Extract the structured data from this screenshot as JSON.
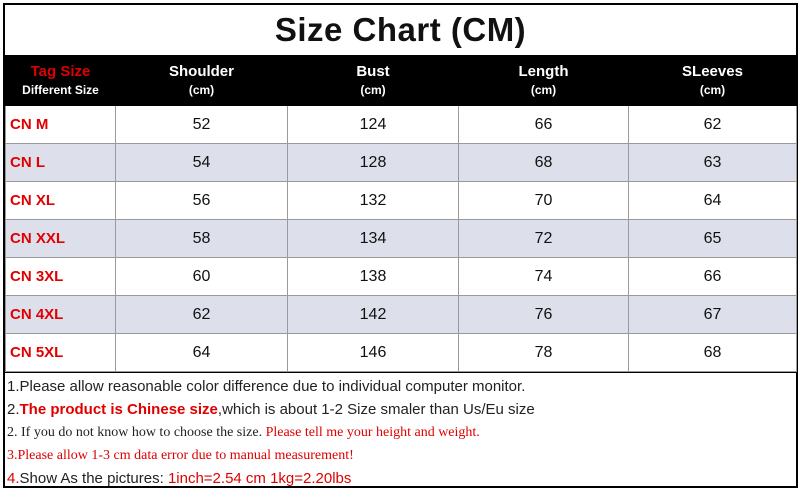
{
  "title": "Size Chart (CM)",
  "header": {
    "tag_size": "Tag Size",
    "different_size": "Different Size",
    "columns": [
      {
        "name": "Shoulder",
        "unit": "(cm)"
      },
      {
        "name": "Bust",
        "unit": "(cm)"
      },
      {
        "name": "Length",
        "unit": "(cm)"
      },
      {
        "name": "SLeeves",
        "unit": "(cm)"
      }
    ]
  },
  "rows": [
    {
      "size": "CN M",
      "values": [
        "52",
        "124",
        "66",
        "62"
      ]
    },
    {
      "size": "CN L",
      "values": [
        "54",
        "128",
        "68",
        "63"
      ]
    },
    {
      "size": "CN XL",
      "values": [
        "56",
        "132",
        "70",
        "64"
      ]
    },
    {
      "size": "CN XXL",
      "values": [
        "58",
        "134",
        "72",
        "65"
      ]
    },
    {
      "size": "CN 3XL",
      "values": [
        "60",
        "138",
        "74",
        "66"
      ]
    },
    {
      "size": "CN 4XL",
      "values": [
        "62",
        "142",
        "76",
        "67"
      ]
    },
    {
      "size": "CN 5XL",
      "values": [
        "64",
        "146",
        "78",
        "68"
      ]
    }
  ],
  "notes": {
    "n1": "1.Please allow reasonable color difference due to individual computer monitor.",
    "n2_prefix": "2.",
    "n2_red": "The product is Chinese size",
    "n2_rest": ",which is about 1-2 Size smaler than Us/Eu size",
    "n3_black": "2.  If you do not know how to choose the size.  ",
    "n3_red": "Please tell me your height and weight.",
    "n4": "3.Please allow 1-3 cm data error due to manual measurement!",
    "n5_num": "4.",
    "n5_black": "Show As the pictures: ",
    "n5_red": "1inch=2.54 cm 1kg=2.20lbs"
  },
  "colors": {
    "accent_red": "#e00000",
    "header_bg": "#000000",
    "alt_row_bg": "#dde0ea"
  }
}
